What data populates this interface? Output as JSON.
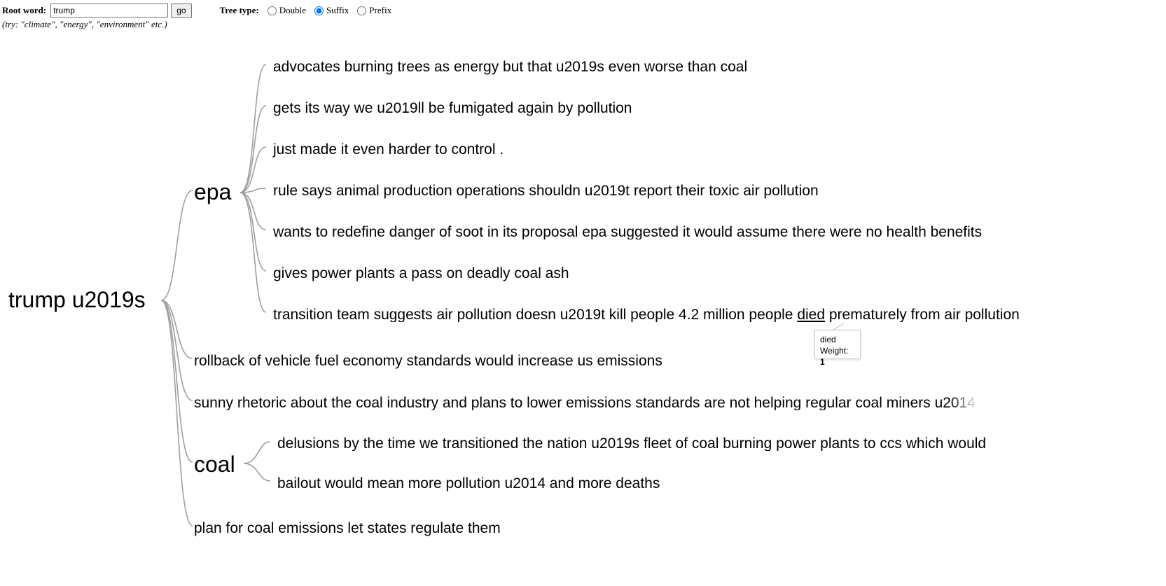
{
  "controls": {
    "root_word_label": "Root word:",
    "root_word_value": "trump",
    "go_label": "go",
    "hint": "(try: \"climate\", \"energy\", \"environment\" etc.)",
    "tree_type_label": "Tree type:",
    "tree_types": [
      {
        "label": "Double",
        "checked": false
      },
      {
        "label": "Suffix",
        "checked": true
      },
      {
        "label": "Prefix",
        "checked": false
      }
    ]
  },
  "tree": {
    "root": "trump u2019s",
    "branches": {
      "epa": {
        "label": "epa",
        "leaves": [
          "advocates burning trees as energy but that u2019s even worse than coal",
          "gets its way we u2019ll be fumigated again by pollution",
          "just made it even harder to control .",
          "rule says animal production operations shouldn u2019t report their toxic air pollution",
          "wants to redefine danger of soot in its proposal epa suggested it would assume there were no health benefits",
          "gives power plants a pass on deadly coal ash",
          "transition team suggests air pollution doesn u2019t kill people 4.2 million people",
          "died",
          "prematurely from air pollution"
        ]
      },
      "rollback": "rollback of vehicle fuel economy standards would increase us emissions",
      "sunny": "sunny rhetoric about the coal industry and plans to lower emissions standards are not helping regular coal miners u2014",
      "coal": {
        "label": "coal",
        "leaves": [
          "delusions by the time we transitioned the nation u2019s fleet of coal burning power plants to ccs which would",
          "bailout would mean more pollution u2014 and more deaths"
        ]
      },
      "plan": "plan for coal emissions let states regulate them"
    }
  },
  "tooltip": {
    "word": "died",
    "weight_label": "Weight:",
    "weight_value": "1"
  },
  "colors": {
    "link": "#9e9e9e",
    "text": "#000000"
  }
}
